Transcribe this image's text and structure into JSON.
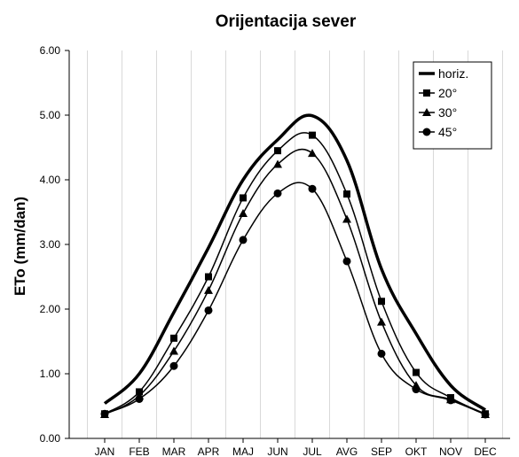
{
  "chart_data": {
    "type": "line",
    "title": "Orijentacija sever",
    "xlabel": "",
    "ylabel": "ETo (mm/dan)",
    "ylim": [
      0,
      6
    ],
    "yticks": [
      "0.00",
      "1.00",
      "2.00",
      "3.00",
      "4.00",
      "5.00",
      "6.00"
    ],
    "categories": [
      "JAN",
      "FEB",
      "MAR",
      "APR",
      "MAJ",
      "JUN",
      "JUL",
      "AVG",
      "SEP",
      "OKT",
      "NOV",
      "DEC"
    ],
    "grid": "vertical",
    "legend_position": "top-right",
    "series": [
      {
        "name": "horiz.",
        "marker": "none",
        "values": [
          0.54,
          1.0,
          1.95,
          2.95,
          4.0,
          4.62,
          4.99,
          4.3,
          2.62,
          1.62,
          0.82,
          0.44
        ]
      },
      {
        "name": "20°",
        "marker": "square",
        "values": [
          0.38,
          0.72,
          1.55,
          2.5,
          3.72,
          4.45,
          4.69,
          3.78,
          2.12,
          1.02,
          0.63,
          0.38
        ]
      },
      {
        "name": "30°",
        "marker": "triangle",
        "values": [
          0.37,
          0.66,
          1.35,
          2.29,
          3.48,
          4.24,
          4.41,
          3.39,
          1.8,
          0.82,
          0.6,
          0.37
        ]
      },
      {
        "name": "45°",
        "marker": "circle",
        "values": [
          0.38,
          0.61,
          1.12,
          1.98,
          3.07,
          3.79,
          3.86,
          2.74,
          1.31,
          0.76,
          0.59,
          0.37
        ]
      }
    ]
  }
}
